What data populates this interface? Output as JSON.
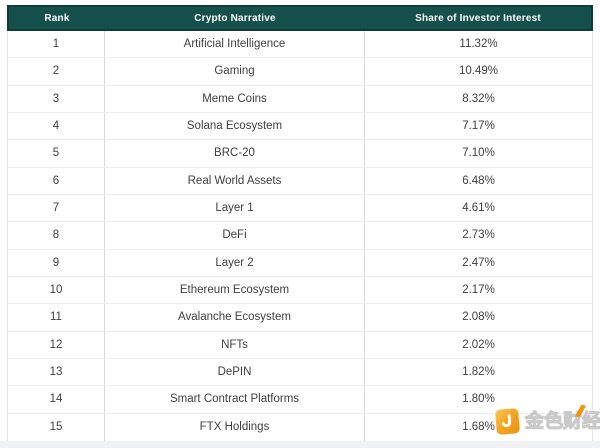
{
  "page": {
    "background": "#ffffff",
    "bottom_strip_color": "#f1f2f4"
  },
  "table": {
    "header_bg": "#15504c",
    "header_border": "#0d3c39",
    "header_text_color": "#ffffff",
    "cell_text_color": "#404040",
    "columns": [
      "Rank",
      "Crypto Narrative",
      "Share of Investor Interest"
    ],
    "rows": [
      {
        "rank": "1",
        "narrative": "Artificial Intelligence",
        "share": "11.32%"
      },
      {
        "rank": "2",
        "narrative": "Gaming",
        "share": "10.49%"
      },
      {
        "rank": "3",
        "narrative": "Meme Coins",
        "share": "8.32%"
      },
      {
        "rank": "4",
        "narrative": "Solana Ecosystem",
        "share": "7.17%"
      },
      {
        "rank": "5",
        "narrative": "BRC-20",
        "share": "7.10%"
      },
      {
        "rank": "6",
        "narrative": "Real World Assets",
        "share": "6.48%"
      },
      {
        "rank": "7",
        "narrative": "Layer 1",
        "share": "4.61%"
      },
      {
        "rank": "8",
        "narrative": "DeFi",
        "share": "2.73%"
      },
      {
        "rank": "9",
        "narrative": "Layer 2",
        "share": "2.47%"
      },
      {
        "rank": "10",
        "narrative": "Ethereum Ecosystem",
        "share": "2.17%"
      },
      {
        "rank": "11",
        "narrative": "Avalanche Ecosystem",
        "share": "2.08%"
      },
      {
        "rank": "12",
        "narrative": "NFTs",
        "share": "2.02%"
      },
      {
        "rank": "13",
        "narrative": "DePIN",
        "share": "1.82%"
      },
      {
        "rank": "14",
        "narrative": "Smart Contract Platforms",
        "share": "1.80%"
      },
      {
        "rank": "15",
        "narrative": "FTX Holdings",
        "share": "1.68%"
      }
    ]
  },
  "watermark": {
    "text": "金色财经",
    "logo_color": "#f5a623",
    "accent_color": "#f39211"
  },
  "chart_data": {
    "type": "table",
    "columns": [
      "Rank",
      "Crypto Narrative",
      "Share of Investor Interest"
    ],
    "categories": [
      "Artificial Intelligence",
      "Gaming",
      "Meme Coins",
      "Solana Ecosystem",
      "BRC-20",
      "Real World Assets",
      "Layer 1",
      "DeFi",
      "Layer 2",
      "Ethereum Ecosystem",
      "Avalanche Ecosystem",
      "NFTs",
      "DePIN",
      "Smart Contract Platforms",
      "FTX Holdings"
    ],
    "values": [
      11.32,
      10.49,
      8.32,
      7.17,
      7.1,
      6.48,
      4.61,
      2.73,
      2.47,
      2.17,
      2.08,
      2.02,
      1.82,
      1.8,
      1.68
    ],
    "value_unit": "%",
    "ranks": [
      1,
      2,
      3,
      4,
      5,
      6,
      7,
      8,
      9,
      10,
      11,
      12,
      13,
      14,
      15
    ],
    "title": "",
    "legend": false,
    "grid": true
  }
}
